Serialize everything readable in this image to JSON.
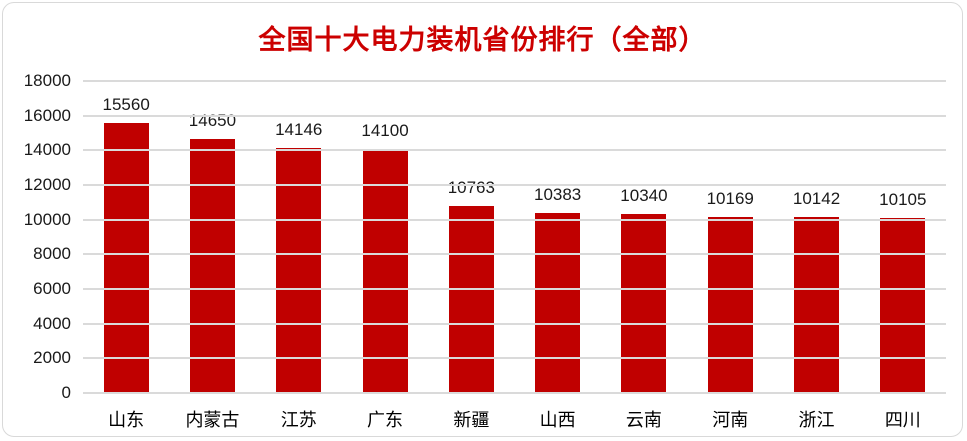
{
  "chart_data": {
    "type": "bar",
    "title": "全国十大电力装机省份排行（全部）",
    "categories": [
      "山东",
      "内蒙古",
      "江苏",
      "广东",
      "新疆",
      "山西",
      "云南",
      "河南",
      "浙江",
      "四川"
    ],
    "values": [
      15560,
      14650,
      14146,
      14100,
      10763,
      10383,
      10340,
      10169,
      10142,
      10105
    ],
    "xlabel": "",
    "ylabel": "",
    "ylim": [
      0,
      18000
    ],
    "yticks": [
      0,
      2000,
      4000,
      6000,
      8000,
      10000,
      12000,
      14000,
      16000,
      18000
    ],
    "grid": true,
    "legend_position": "none",
    "data_labels_visible": true,
    "colors": {
      "bar": "#c00000",
      "title_text": "#cc0000",
      "gridline": "#dadada",
      "axis_text": "#1a1a1a",
      "category_text": "#000000",
      "card_border": "#d9d9d9",
      "background": "#ffffff"
    }
  }
}
